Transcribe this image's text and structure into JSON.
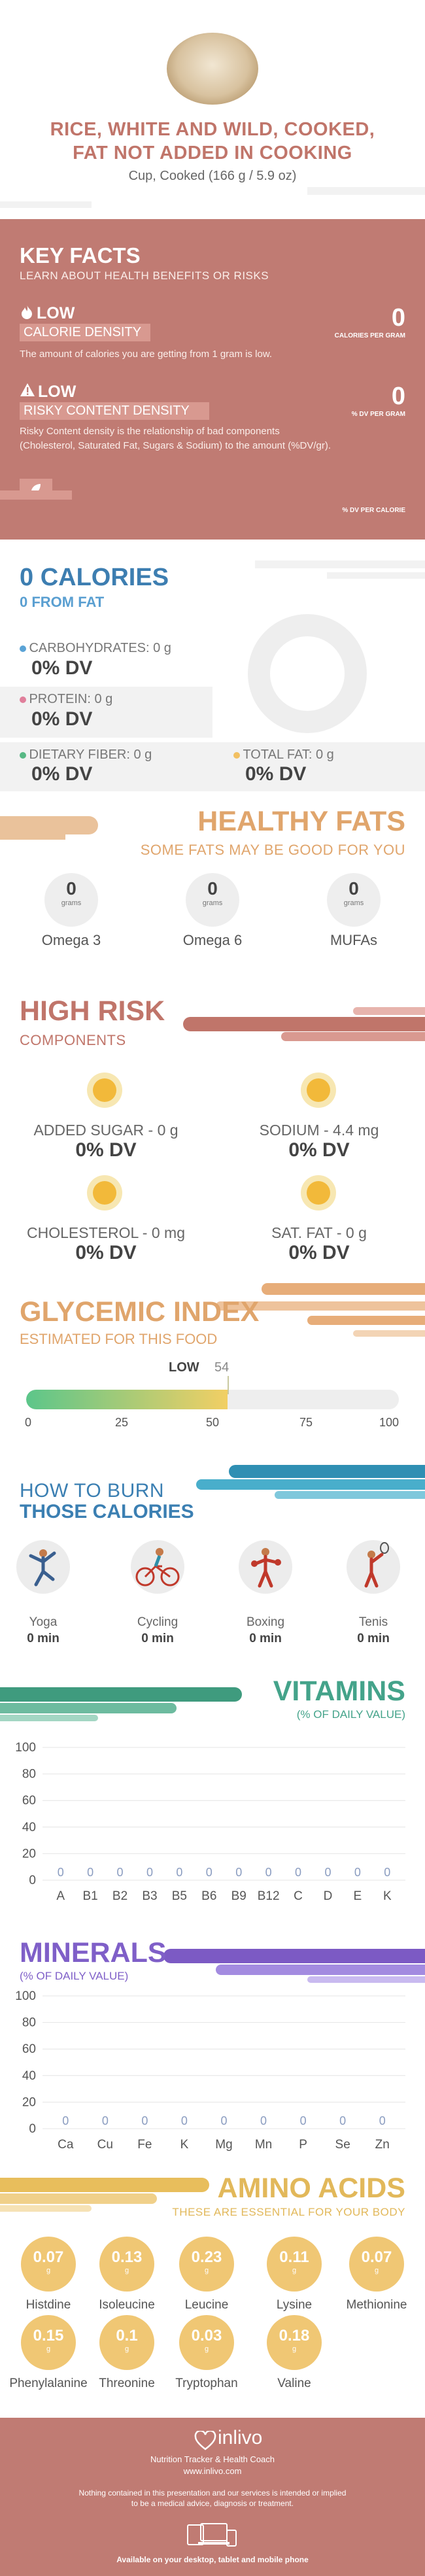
{
  "header": {
    "title_line1": "RICE, WHITE AND WILD, COOKED,",
    "title_line2": "FAT NOT ADDED IN COOKING",
    "serving": "Cup, Cooked (166 g / 5.9 oz)"
  },
  "key_facts": {
    "title": "KEY FACTS",
    "subtitle": "LEARN ABOUT HEALTH BENEFITS OR RISKS",
    "calorie_density": {
      "level": "LOW",
      "label": "CALORIE DENSITY",
      "value": "0",
      "unit": "CALORIES PER GRAM",
      "description": "The amount of calories you are getting from 1 gram is low."
    },
    "risky_density": {
      "level": "LOW",
      "label": "RISKY CONTENT DENSITY",
      "value": "0",
      "unit": "% DV PER GRAM",
      "description_line1": "Risky Content density is the relationship of bad components",
      "description_line2": "(Cholesterol, Saturated Fat, Sugars & Sodium) to the amount (%DV/gr)."
    },
    "dv_per_calorie": "% DV PER CALORIE"
  },
  "calories": {
    "title": "0 CALORIES",
    "subtitle": "0 FROM FAT",
    "items": [
      {
        "label": "CARBOHYDRATES: 0 g",
        "value": "0% DV",
        "color": "#5aa3d6"
      },
      {
        "label": "PROTEIN: 0 g",
        "value": "0% DV",
        "color": "#e07f9b"
      },
      {
        "label": "DIETARY FIBER: 0 g",
        "value": "0% DV",
        "color": "#57b884"
      },
      {
        "label": "TOTAL FAT: 0 g",
        "value": "0% DV",
        "color": "#f2c062"
      }
    ]
  },
  "healthy_fats": {
    "title": "HEALTHY FATS",
    "subtitle": "SOME FATS MAY BE GOOD FOR YOU",
    "items": [
      {
        "value": "0",
        "unit": "grams",
        "name": "Omega 3"
      },
      {
        "value": "0",
        "unit": "grams",
        "name": "Omega 6"
      },
      {
        "value": "0",
        "unit": "grams",
        "name": "MUFAs"
      }
    ]
  },
  "high_risk": {
    "title": "HIGH RISK",
    "subtitle": "COMPONENTS",
    "items": [
      {
        "label": "ADDED SUGAR - 0 g",
        "value": "0% DV"
      },
      {
        "label": "SODIUM - 4.4 mg",
        "value": "0% DV"
      },
      {
        "label": "CHOLESTEROL - 0 mg",
        "value": "0% DV"
      },
      {
        "label": "SAT. FAT - 0 g",
        "value": "0% DV"
      }
    ]
  },
  "glycemic": {
    "title": "GLYCEMIC INDEX",
    "subtitle": "ESTIMATED FOR THIS FOOD",
    "level": "LOW",
    "value": 54,
    "value_text": "54",
    "ticks": [
      "0",
      "25",
      "50",
      "75",
      "100"
    ]
  },
  "burn": {
    "title_line1": "HOW TO BURN",
    "title_line2": "THOSE CALORIES",
    "activities": [
      {
        "name": "Yoga",
        "value": "0 min",
        "icon": "yoga-icon"
      },
      {
        "name": "Cycling",
        "value": "0 min",
        "icon": "cycling-icon"
      },
      {
        "name": "Boxing",
        "value": "0 min",
        "icon": "boxing-icon"
      },
      {
        "name": "Tenis",
        "value": "0 min",
        "icon": "tennis-icon"
      }
    ]
  },
  "vitamins": {
    "title": "VITAMINS",
    "subtitle": "(% OF DAILY VALUE)",
    "y_ticks": [
      "100",
      "80",
      "60",
      "40",
      "20",
      "0"
    ]
  },
  "minerals": {
    "title": "MINERALS",
    "subtitle": "(% OF DAILY VALUE)",
    "y_ticks": [
      "100",
      "80",
      "60",
      "40",
      "20",
      "0"
    ]
  },
  "chart_data": [
    {
      "type": "bar",
      "title": "VITAMINS",
      "categories": [
        "A",
        "B1",
        "B2",
        "B3",
        "B5",
        "B6",
        "B9",
        "B12",
        "C",
        "D",
        "E",
        "K"
      ],
      "values": [
        0,
        0,
        0,
        0,
        0,
        0,
        0,
        0,
        0,
        0,
        0,
        0
      ],
      "value_labels": [
        "0",
        "0",
        "0",
        "0",
        "0",
        "0",
        "0",
        "0",
        "0",
        "0",
        "0",
        "0"
      ],
      "ylabel": "(% OF DAILY VALUE)",
      "ylim": [
        0,
        100
      ],
      "grid": true,
      "color": "#44a38a"
    },
    {
      "type": "bar",
      "title": "MINERALS",
      "categories": [
        "Ca",
        "Cu",
        "Fe",
        "K",
        "Mg",
        "Mn",
        "P",
        "Se",
        "Zn"
      ],
      "values": [
        0,
        0,
        0,
        0,
        0,
        0,
        0,
        0,
        0
      ],
      "value_labels": [
        "0",
        "0",
        "0",
        "0",
        "0",
        "0",
        "0",
        "0",
        "0"
      ],
      "ylabel": "(% OF DAILY VALUE)",
      "ylim": [
        0,
        100
      ],
      "grid": true,
      "color": "#7f5fc8"
    }
  ],
  "amino": {
    "title": "AMINO ACIDS",
    "subtitle": "THESE ARE ESSENTIAL FOR YOUR BODY",
    "unit": "g",
    "items": [
      {
        "value": "0.07",
        "name": "Histdine"
      },
      {
        "value": "0.13",
        "name": "Isoleucine"
      },
      {
        "value": "0.23",
        "name": "Leucine"
      },
      {
        "value": "0.11",
        "name": "Lysine"
      },
      {
        "value": "0.07",
        "name": "Methionine"
      },
      {
        "value": "0.15",
        "name": "Phenylalanine"
      },
      {
        "value": "0.1",
        "name": "Threonine"
      },
      {
        "value": "0.03",
        "name": "Tryptophan"
      },
      {
        "value": "0.18",
        "name": "Valine"
      }
    ]
  },
  "footer": {
    "brand": "inlivo",
    "tagline": "Nutrition Tracker & Health Coach",
    "url": "www.inlivo.com",
    "disclaimer_line1": "Nothing contained in this presentation and our services is intended or implied",
    "disclaimer_line2": "to be a medical advice, diagnosis or treatment.",
    "available": "Available on your desktop, tablet and mobile phone"
  }
}
